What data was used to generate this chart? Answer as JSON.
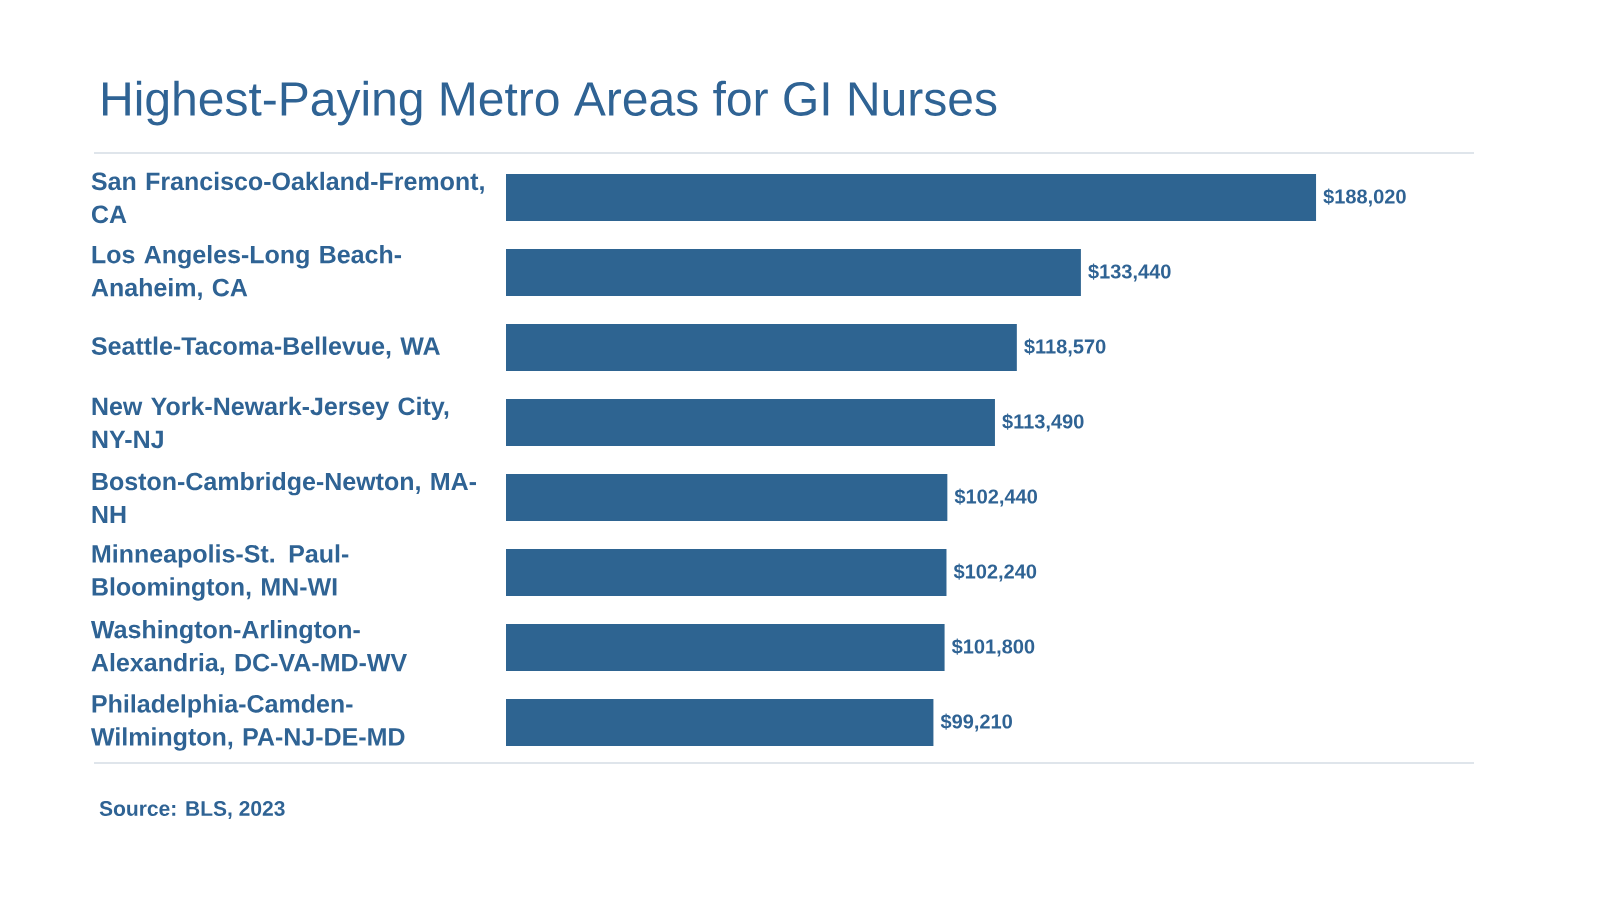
{
  "chart_data": {
    "type": "bar",
    "orientation": "horizontal",
    "title": "Highest-Paying Metro Areas for GI Nurses",
    "categories": [
      "San Francisco-Oakland-Fremont, CA",
      "Los Angeles-Long Beach-Anaheim, CA",
      "Seattle-Tacoma-Bellevue, WA",
      "New York-Newark-Jersey City, NY-NJ",
      "Boston-Cambridge-Newton, MA-NH",
      "Minneapolis-St. Paul-Bloomington, MN-WI",
      "Washington-Arlington-Alexandria, DC-VA-MD-WV",
      "Philadelphia-Camden-Wilmington, PA-NJ-DE-MD"
    ],
    "values": [
      188020,
      133440,
      118570,
      113490,
      102440,
      102240,
      101800,
      99210
    ],
    "value_labels": [
      "$188,020",
      "$133,440",
      "$118,570",
      "$113,490",
      "$102,440",
      "$102,240",
      "$101,800",
      "$99,210"
    ],
    "color": "#2e6491",
    "annotations": [
      "Source: BLS, 2023"
    ]
  }
}
